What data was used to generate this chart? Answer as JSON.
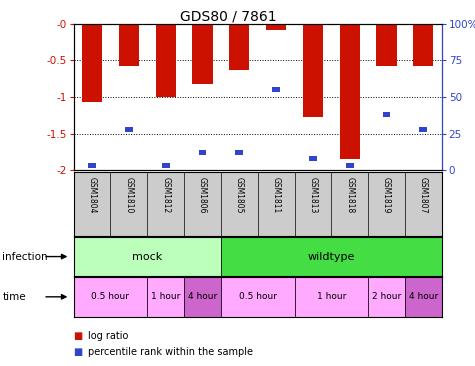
{
  "title": "GDS80 / 7861",
  "samples": [
    "GSM1804",
    "GSM1810",
    "GSM1812",
    "GSM1806",
    "GSM1805",
    "GSM1811",
    "GSM1813",
    "GSM1818",
    "GSM1819",
    "GSM1807"
  ],
  "log_ratios": [
    -1.07,
    -0.57,
    -1.0,
    -0.82,
    -0.63,
    -0.08,
    -1.28,
    -1.85,
    -0.57,
    -0.57
  ],
  "percentile_ranks": [
    3,
    28,
    3,
    12,
    12,
    55,
    8,
    3,
    38,
    28
  ],
  "ylim_left": [
    -2.0,
    0.0
  ],
  "ylim_right": [
    0,
    100
  ],
  "yticks_left": [
    0.0,
    -0.5,
    -1.0,
    -1.5,
    -2.0
  ],
  "ytick_labels_left": [
    "-0",
    "-0.5",
    "-1",
    "-1.5",
    "-2"
  ],
  "yticks_right": [
    0,
    25,
    50,
    75,
    100
  ],
  "ytick_labels_right": [
    "0",
    "25",
    "50",
    "75",
    "100%"
  ],
  "bar_color": "#cc1100",
  "blue_color": "#3344cc",
  "infection_groups": [
    {
      "label": "mock",
      "start": 0,
      "end": 3,
      "color": "#bbffbb"
    },
    {
      "label": "wildtype",
      "start": 4,
      "end": 9,
      "color": "#44dd44"
    }
  ],
  "time_groups": [
    {
      "label": "0.5 hour",
      "start": 0,
      "end": 1,
      "color": "#ffaaff"
    },
    {
      "label": "1 hour",
      "start": 2,
      "end": 2,
      "color": "#ffaaff"
    },
    {
      "label": "4 hour",
      "start": 3,
      "end": 3,
      "color": "#cc66cc"
    },
    {
      "label": "0.5 hour",
      "start": 4,
      "end": 5,
      "color": "#ffaaff"
    },
    {
      "label": "1 hour",
      "start": 6,
      "end": 7,
      "color": "#ffaaff"
    },
    {
      "label": "2 hour",
      "start": 8,
      "end": 8,
      "color": "#ffaaff"
    },
    {
      "label": "4 hour",
      "start": 9,
      "end": 9,
      "color": "#cc66cc"
    }
  ],
  "legend_items": [
    {
      "label": "log ratio",
      "color": "#cc1100"
    },
    {
      "label": "percentile rank within the sample",
      "color": "#3344cc"
    }
  ],
  "tick_label_color_left": "#cc1100",
  "tick_label_color_right": "#3344cc",
  "dotted_lines": [
    -0.5,
    -1.0,
    -1.5
  ],
  "sample_bg_color": "#cccccc",
  "n_samples": 10
}
